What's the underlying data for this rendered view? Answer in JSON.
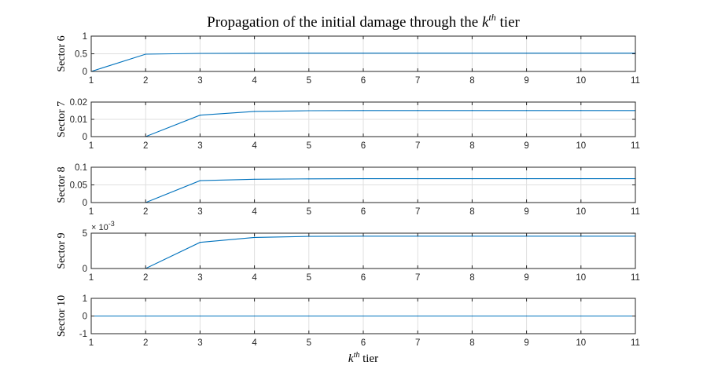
{
  "figure": {
    "title_main": "Propagation of the initial damage through the ",
    "title_k": "k",
    "title_sup": "th",
    "title_tail": " tier",
    "xlabel_k": "k",
    "xlabel_sup": "th",
    "xlabel_tail": " tier"
  },
  "colors": {
    "line": "#0072bd",
    "axes": "#262626",
    "grid": "#dfdfdf",
    "background": "#ffffff"
  },
  "chart_data": [
    {
      "type": "line",
      "ylabel": "Sector 6",
      "x": [
        1,
        2,
        3,
        4,
        5,
        6,
        7,
        8,
        9,
        10,
        11
      ],
      "y": [
        0,
        0.49,
        0.51,
        0.515,
        0.517,
        0.518,
        0.518,
        0.518,
        0.518,
        0.518,
        0.518
      ],
      "xlim": [
        1,
        11
      ],
      "ylim": [
        0,
        1
      ],
      "xticks": [
        "1",
        "2",
        "3",
        "4",
        "5",
        "6",
        "7",
        "8",
        "9",
        "10",
        "11"
      ],
      "yticks": [
        {
          "v": 0,
          "label": "0"
        },
        {
          "v": 0.5,
          "label": "0.5"
        },
        {
          "v": 1,
          "label": "1"
        }
      ],
      "grid": true
    },
    {
      "type": "line",
      "ylabel": "Sector 7",
      "x": [
        1,
        2,
        3,
        4,
        5,
        6,
        7,
        8,
        9,
        10,
        11
      ],
      "y": [
        0,
        0,
        0.0124,
        0.0146,
        0.015,
        0.0151,
        0.0151,
        0.0151,
        0.0151,
        0.0151,
        0.0151
      ],
      "xlim": [
        1,
        11
      ],
      "ylim": [
        0,
        0.02
      ],
      "xticks": [
        "1",
        "2",
        "3",
        "4",
        "5",
        "6",
        "7",
        "8",
        "9",
        "10",
        "11"
      ],
      "yticks": [
        {
          "v": 0,
          "label": "0"
        },
        {
          "v": 0.01,
          "label": "0.01"
        },
        {
          "v": 0.02,
          "label": "0.02"
        }
      ],
      "grid": true
    },
    {
      "type": "line",
      "ylabel": "Sector 8",
      "x": [
        1,
        2,
        3,
        4,
        5,
        6,
        7,
        8,
        9,
        10,
        11
      ],
      "y": [
        0,
        0,
        0.062,
        0.066,
        0.067,
        0.0675,
        0.0675,
        0.0675,
        0.0675,
        0.0675,
        0.0675
      ],
      "xlim": [
        1,
        11
      ],
      "ylim": [
        0,
        0.1
      ],
      "xticks": [
        "1",
        "2",
        "3",
        "4",
        "5",
        "6",
        "7",
        "8",
        "9",
        "10",
        "11"
      ],
      "yticks": [
        {
          "v": 0,
          "label": "0"
        },
        {
          "v": 0.05,
          "label": "0.05"
        },
        {
          "v": 0.1,
          "label": "0.1"
        }
      ],
      "grid": true
    },
    {
      "type": "line",
      "ylabel": "Sector 9",
      "exponent_base": "× 10",
      "exponent_power": "-3",
      "x": [
        1,
        2,
        3,
        4,
        5,
        6,
        7,
        8,
        9,
        10,
        11
      ],
      "y": [
        0,
        0,
        3.7,
        4.4,
        4.55,
        4.58,
        4.58,
        4.58,
        4.58,
        4.58,
        4.58
      ],
      "xlim": [
        1,
        11
      ],
      "ylim": [
        0,
        5
      ],
      "xticks": [
        "1",
        "2",
        "3",
        "4",
        "5",
        "6",
        "7",
        "8",
        "9",
        "10",
        "11"
      ],
      "yticks": [
        {
          "v": 0,
          "label": "0"
        },
        {
          "v": 5,
          "label": "5"
        }
      ],
      "grid": true
    },
    {
      "type": "line",
      "ylabel": "Sector 10",
      "x": [
        1,
        2,
        3,
        4,
        5,
        6,
        7,
        8,
        9,
        10,
        11
      ],
      "y": [
        0,
        0,
        0,
        0,
        0,
        0,
        0,
        0,
        0,
        0,
        0
      ],
      "xlim": [
        1,
        11
      ],
      "ylim": [
        -1,
        1
      ],
      "xticks": [
        "1",
        "2",
        "3",
        "4",
        "5",
        "6",
        "7",
        "8",
        "9",
        "10",
        "11"
      ],
      "yticks": [
        {
          "v": -1,
          "label": "-1"
        },
        {
          "v": 0,
          "label": "0"
        },
        {
          "v": 1,
          "label": "1"
        }
      ],
      "grid": true
    }
  ]
}
